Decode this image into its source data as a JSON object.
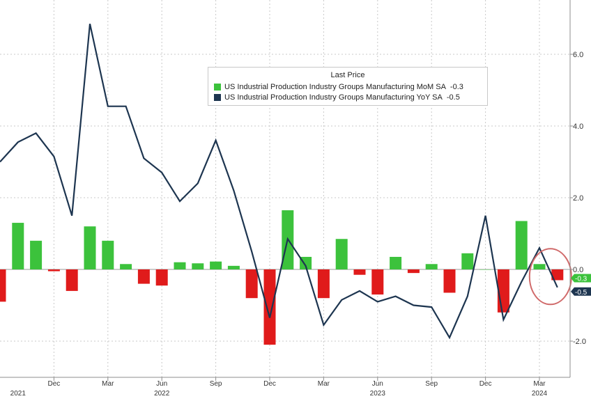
{
  "chart_data": {
    "type": "bar+line",
    "legend": {
      "title": "Last Price",
      "placement": "top-center",
      "entries": [
        {
          "name": "US Industrial Production Industry Groups Manufacturing MoM SA",
          "last": "-0.3",
          "color": "#3cc23c"
        },
        {
          "name": "US Industrial Production Industry Groups Manufacturing YoY SA",
          "last": "-0.5",
          "color": "#1d3550"
        }
      ]
    },
    "y_axis": {
      "side": "right",
      "ylim": [
        -2.8,
        7.4
      ],
      "ticks": [
        -2.0,
        0.0,
        2.0,
        4.0,
        6.0
      ],
      "tick_labels": [
        "-2.0",
        "0.0",
        "2.0",
        "4.0",
        "6.0"
      ],
      "last_value_tags": [
        {
          "label": "-0.3",
          "value": -0.3,
          "color": "#3cc23c"
        },
        {
          "label": "-0.5",
          "value": -0.5,
          "color": "#1d3550"
        }
      ]
    },
    "x_axis": {
      "start_month": "2021-09",
      "month_labels": [
        {
          "label": "Dec",
          "month": "2021-12"
        },
        {
          "label": "Mar",
          "month": "2022-03"
        },
        {
          "label": "Jun",
          "month": "2022-06"
        },
        {
          "label": "Sep",
          "month": "2022-09"
        },
        {
          "label": "Dec",
          "month": "2022-12"
        },
        {
          "label": "Mar",
          "month": "2023-03"
        },
        {
          "label": "Jun",
          "month": "2023-06"
        },
        {
          "label": "Sep",
          "month": "2023-09"
        },
        {
          "label": "Dec",
          "month": "2023-12"
        },
        {
          "label": "Mar",
          "month": "2024-03"
        }
      ],
      "year_labels": [
        {
          "label": "2021",
          "month": "2021-10"
        },
        {
          "label": "2022",
          "month": "2022-06"
        },
        {
          "label": "2023",
          "month": "2023-06"
        },
        {
          "label": "2024",
          "month": "2024-03"
        }
      ]
    },
    "bars": {
      "name": "US Industrial Production Industry Groups Manufacturing MoM SA",
      "months": [
        "2021-09",
        "2021-10",
        "2021-11",
        "2021-12",
        "2022-01",
        "2022-02",
        "2022-03",
        "2022-04",
        "2022-05",
        "2022-06",
        "2022-07",
        "2022-08",
        "2022-09",
        "2022-10",
        "2022-11",
        "2022-12",
        "2023-01",
        "2023-02",
        "2023-03",
        "2023-04",
        "2023-05",
        "2023-06",
        "2023-07",
        "2023-08",
        "2023-09",
        "2023-10",
        "2023-11",
        "2023-12",
        "2024-01",
        "2024-02",
        "2024-03",
        "2024-04"
      ],
      "values": [
        -0.9,
        1.3,
        0.8,
        -0.05,
        -0.6,
        1.2,
        0.8,
        0.15,
        -0.4,
        -0.45,
        0.2,
        0.17,
        0.22,
        0.1,
        -0.8,
        -2.1,
        1.65,
        0.35,
        -0.8,
        0.85,
        -0.15,
        -0.7,
        0.35,
        -0.1,
        0.15,
        -0.65,
        0.45,
        0.0,
        -1.2,
        1.35,
        0.15,
        -0.3
      ],
      "positive_color": "#3cc23c",
      "negative_color": "#e01b1b"
    },
    "line": {
      "name": "US Industrial Production Industry Groups Manufacturing YoY SA",
      "months": [
        "2021-09",
        "2021-10",
        "2021-11",
        "2021-12",
        "2022-01",
        "2022-02",
        "2022-03",
        "2022-04",
        "2022-05",
        "2022-06",
        "2022-07",
        "2022-08",
        "2022-09",
        "2022-10",
        "2022-11",
        "2022-12",
        "2023-01",
        "2023-02",
        "2023-03",
        "2023-04",
        "2023-05",
        "2023-06",
        "2023-07",
        "2023-08",
        "2023-09",
        "2023-10",
        "2023-11",
        "2023-12",
        "2024-01",
        "2024-02",
        "2024-03",
        "2024-04"
      ],
      "values": [
        3.0,
        3.55,
        3.8,
        3.15,
        1.5,
        6.85,
        4.55,
        4.55,
        3.1,
        2.7,
        1.9,
        2.4,
        3.6,
        2.2,
        0.5,
        -1.35,
        0.85,
        0.1,
        -1.55,
        -0.85,
        -0.6,
        -0.9,
        -0.75,
        -1.0,
        -1.05,
        -1.9,
        -0.75,
        1.5,
        -1.4,
        -0.35,
        0.6,
        -0.5
      ],
      "color": "#1d3550"
    },
    "annotation": {
      "type": "circle",
      "color": "#d06a6a"
    },
    "grid": true
  }
}
